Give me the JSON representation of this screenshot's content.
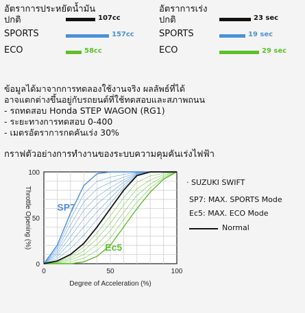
{
  "fuel": {
    "title": "อัตราการประหยัดน้ำมัน",
    "rows": [
      {
        "label": "ปกติ",
        "value": 107,
        "text": "107cc",
        "color": "#111111"
      },
      {
        "label": "SPORTS",
        "value": 157,
        "text": "157cc",
        "color": "#4a90d9"
      },
      {
        "label": "ECO",
        "value": 58,
        "text": "58cc",
        "color": "#5cbf2a"
      }
    ]
  },
  "accel": {
    "title": "อัตราการเร่ง",
    "rows": [
      {
        "label": "ปกติ",
        "value": 23,
        "text": "23 sec",
        "color": "#111111"
      },
      {
        "label": "SPORTS",
        "value": 19,
        "text": "19 sec",
        "color": "#4a90d9"
      },
      {
        "label": "ECO",
        "value": 29,
        "text": "29 sec",
        "color": "#5cbf2a"
      }
    ]
  },
  "notes": [
    "ข้อมูลได้มาจากการทดลองใช้งานจริง ผลลัพธ์ที่ได้",
    "อาจแตกต่างขึ้นอยู่กับรถยนต์ที่ใช้ทดสอบและสภาพถนน",
    "- รถทดสอบ Honda STEP WAGON (RG1)",
    "- ระยะทางการทดสอบ 0-400",
    "- เมตรอัตราการกดคันเร่ง 30%"
  ],
  "graph_title": "กราฟตัวอย่างการทำงานของระบบความคุมคันเร่งไฟฟ้า",
  "legend": {
    "car": "· SUZUKI SWIFT",
    "sp7": "SP7:  MAX. SPORTS Mode",
    "ec5": "Ec5:  MAX. ECO Mode",
    "normal": "Normal"
  },
  "chart_data": {
    "type": "line",
    "xlabel": "Degree of Acceleration (%)",
    "ylabel": "Throttle Opening (%)",
    "xlim": [
      0,
      100
    ],
    "ylim": [
      0,
      100
    ],
    "xticks": [
      0,
      50,
      100
    ],
    "yticks": [
      0,
      50,
      100
    ],
    "grid": true,
    "series_labels": {
      "sp7": "SP7",
      "ec5": "Ec5"
    },
    "series": [
      {
        "name": "Normal",
        "color": "#111111",
        "x": [
          0,
          10,
          20,
          30,
          40,
          50,
          60,
          70,
          80,
          90,
          100
        ],
        "y": [
          0,
          3,
          10,
          22,
          40,
          60,
          80,
          96,
          100,
          100,
          100
        ]
      },
      {
        "name": "SP7",
        "color": "#4a90d9",
        "x": [
          0,
          10,
          20,
          30,
          40,
          50,
          60,
          70,
          80,
          90,
          100
        ],
        "y": [
          0,
          20,
          55,
          85,
          98,
          100,
          100,
          100,
          100,
          100,
          100
        ]
      },
      {
        "name": "Ec5",
        "color": "#5cbf2a",
        "x": [
          0,
          10,
          20,
          30,
          40,
          50,
          60,
          70,
          80,
          90,
          100
        ],
        "y": [
          0,
          0,
          0,
          2,
          8,
          20,
          40,
          60,
          78,
          92,
          100
        ]
      }
    ]
  }
}
